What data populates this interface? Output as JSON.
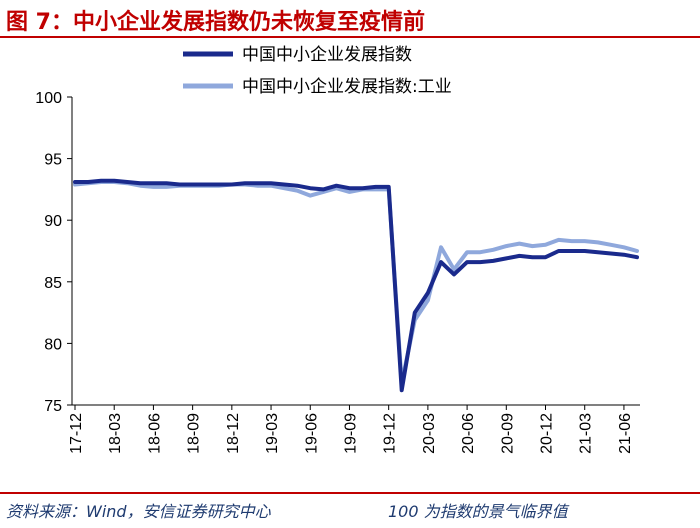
{
  "title": "图 7：中小企业发展指数仍未恢复至疫情前",
  "footer": {
    "source": "资料来源：Wind，安信证券研究中心",
    "note": "100 为指数的景气临界值"
  },
  "colors": {
    "accent": "#c00000",
    "series_main": "#1a2a8c",
    "series_industry": "#8fa8dc",
    "axis": "#000000"
  },
  "chart_data": {
    "type": "line",
    "ylim": [
      75,
      100
    ],
    "yticks": [
      75,
      80,
      85,
      90,
      95,
      100
    ],
    "x": [
      "17-12",
      "18-01",
      "18-02",
      "18-03",
      "18-04",
      "18-05",
      "18-06",
      "18-07",
      "18-08",
      "18-09",
      "18-10",
      "18-11",
      "18-12",
      "19-01",
      "19-02",
      "19-03",
      "19-04",
      "19-05",
      "19-06",
      "19-07",
      "19-08",
      "19-09",
      "19-10",
      "19-11",
      "19-12",
      "20-01",
      "20-02",
      "20-03",
      "20-04",
      "20-05",
      "20-06",
      "20-07",
      "20-08",
      "20-09",
      "20-10",
      "20-11",
      "20-12",
      "21-01",
      "21-02",
      "21-03",
      "21-04",
      "21-05",
      "21-06",
      "21-07"
    ],
    "xtick_labels": [
      "17-12",
      "18-03",
      "18-06",
      "18-09",
      "18-12",
      "19-03",
      "19-06",
      "19-09",
      "19-12",
      "20-03",
      "20-06",
      "20-09",
      "20-12",
      "21-03",
      "21-06"
    ],
    "legend_position": "top",
    "series": [
      {
        "name": "中国中小企业发展指数",
        "values": [
          93.1,
          93.1,
          93.2,
          93.2,
          93.1,
          93.0,
          93.0,
          93.0,
          92.9,
          92.9,
          92.9,
          92.9,
          92.9,
          93.0,
          93.0,
          93.0,
          92.9,
          92.8,
          92.6,
          92.5,
          92.8,
          92.6,
          92.6,
          92.7,
          92.7,
          76.2,
          82.5,
          84.1,
          86.6,
          85.6,
          86.6,
          86.6,
          86.7,
          86.9,
          87.1,
          87.0,
          87.0,
          87.5,
          87.5,
          87.5,
          87.4,
          87.3,
          87.2,
          87.0
        ]
      },
      {
        "name": "中国中小企业发展指数:工业",
        "values": [
          92.9,
          93.0,
          93.1,
          93.1,
          93.0,
          92.8,
          92.7,
          92.7,
          92.8,
          92.8,
          92.8,
          92.8,
          92.9,
          92.9,
          92.8,
          92.8,
          92.6,
          92.4,
          92.0,
          92.3,
          92.6,
          92.3,
          92.5,
          92.5,
          92.5,
          76.8,
          81.9,
          83.5,
          87.8,
          86.0,
          87.4,
          87.4,
          87.6,
          87.9,
          88.1,
          87.9,
          88.0,
          88.4,
          88.3,
          88.3,
          88.2,
          88.0,
          87.8,
          87.5
        ]
      }
    ]
  }
}
